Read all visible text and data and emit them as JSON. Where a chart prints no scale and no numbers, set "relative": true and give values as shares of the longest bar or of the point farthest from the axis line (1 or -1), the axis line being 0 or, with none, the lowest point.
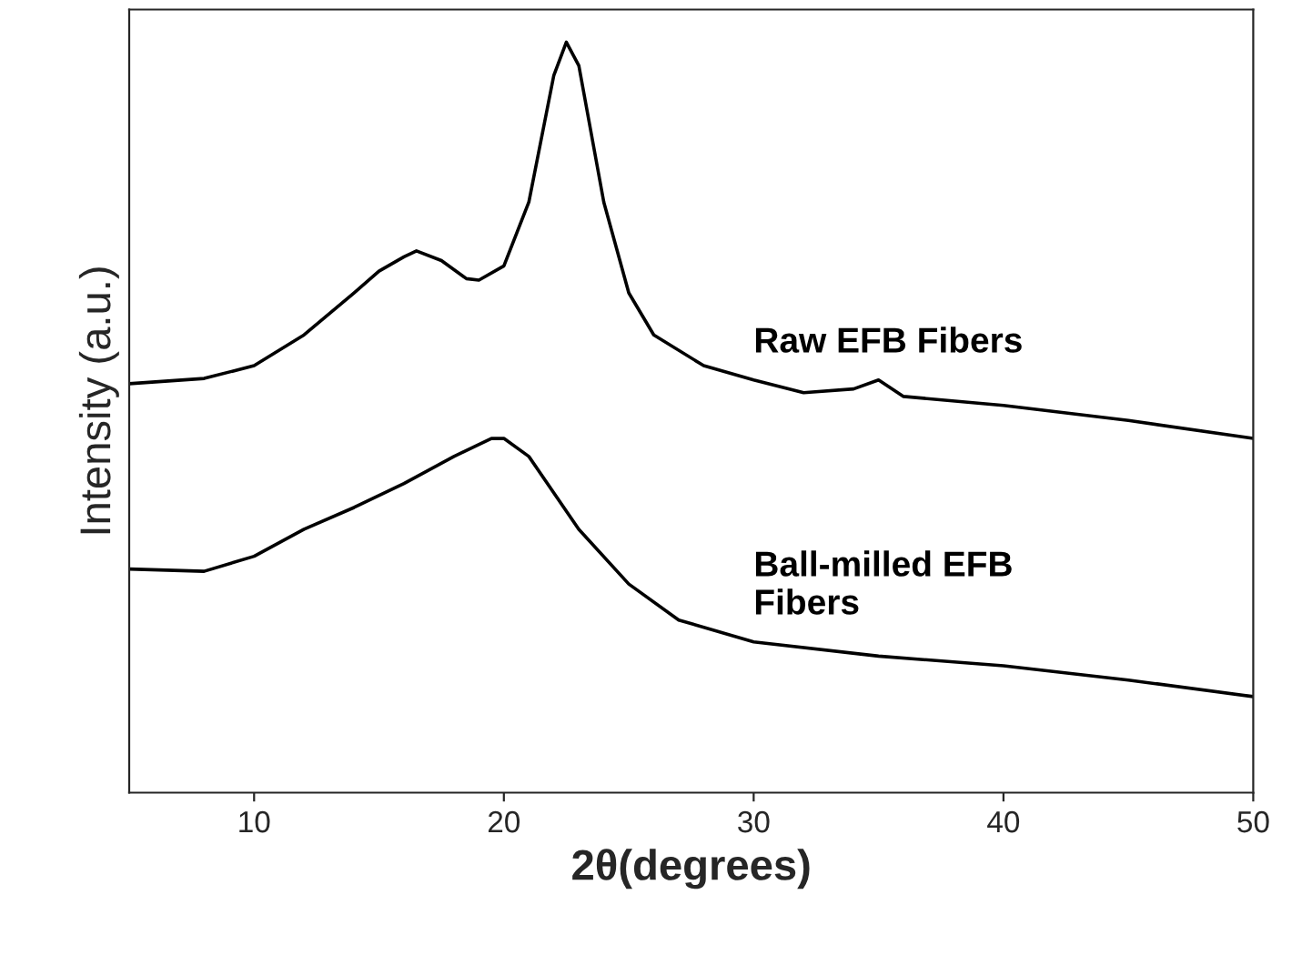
{
  "chart_data": {
    "type": "line",
    "relative": true,
    "xlabel": "2θ(degrees)",
    "ylabel": "Intensity (a.u.)",
    "xlim": [
      5,
      50
    ],
    "xticks": [
      10,
      20,
      30,
      40,
      50
    ],
    "grid": false,
    "legend": false,
    "marker": "none",
    "line_style": "solid",
    "series": [
      {
        "name": "Raw EFB Fibers",
        "color": "#000000",
        "x": [
          5,
          8,
          10,
          12,
          14,
          15,
          16,
          16.5,
          17.5,
          18.5,
          19,
          20,
          21,
          22,
          22.5,
          23,
          24,
          25,
          26,
          28,
          30,
          32,
          34,
          35,
          36,
          40,
          45,
          50
        ],
        "values": [
          0.545,
          0.552,
          0.569,
          0.61,
          0.666,
          0.695,
          0.714,
          0.722,
          0.709,
          0.685,
          0.683,
          0.702,
          0.787,
          0.956,
          1.0,
          0.969,
          0.787,
          0.666,
          0.61,
          0.569,
          0.55,
          0.533,
          0.538,
          0.55,
          0.528,
          0.516,
          0.496,
          0.472
        ]
      },
      {
        "name": "Ball-milled EFB\nFibers",
        "color": "#000000",
        "x": [
          5,
          8,
          10,
          12,
          14,
          16,
          18,
          19.5,
          20,
          21,
          23,
          25,
          27,
          30,
          35,
          40,
          45,
          50
        ],
        "values": [
          0.298,
          0.295,
          0.315,
          0.351,
          0.38,
          0.412,
          0.448,
          0.472,
          0.472,
          0.448,
          0.351,
          0.278,
          0.23,
          0.201,
          0.182,
          0.169,
          0.15,
          0.128
        ]
      }
    ]
  }
}
